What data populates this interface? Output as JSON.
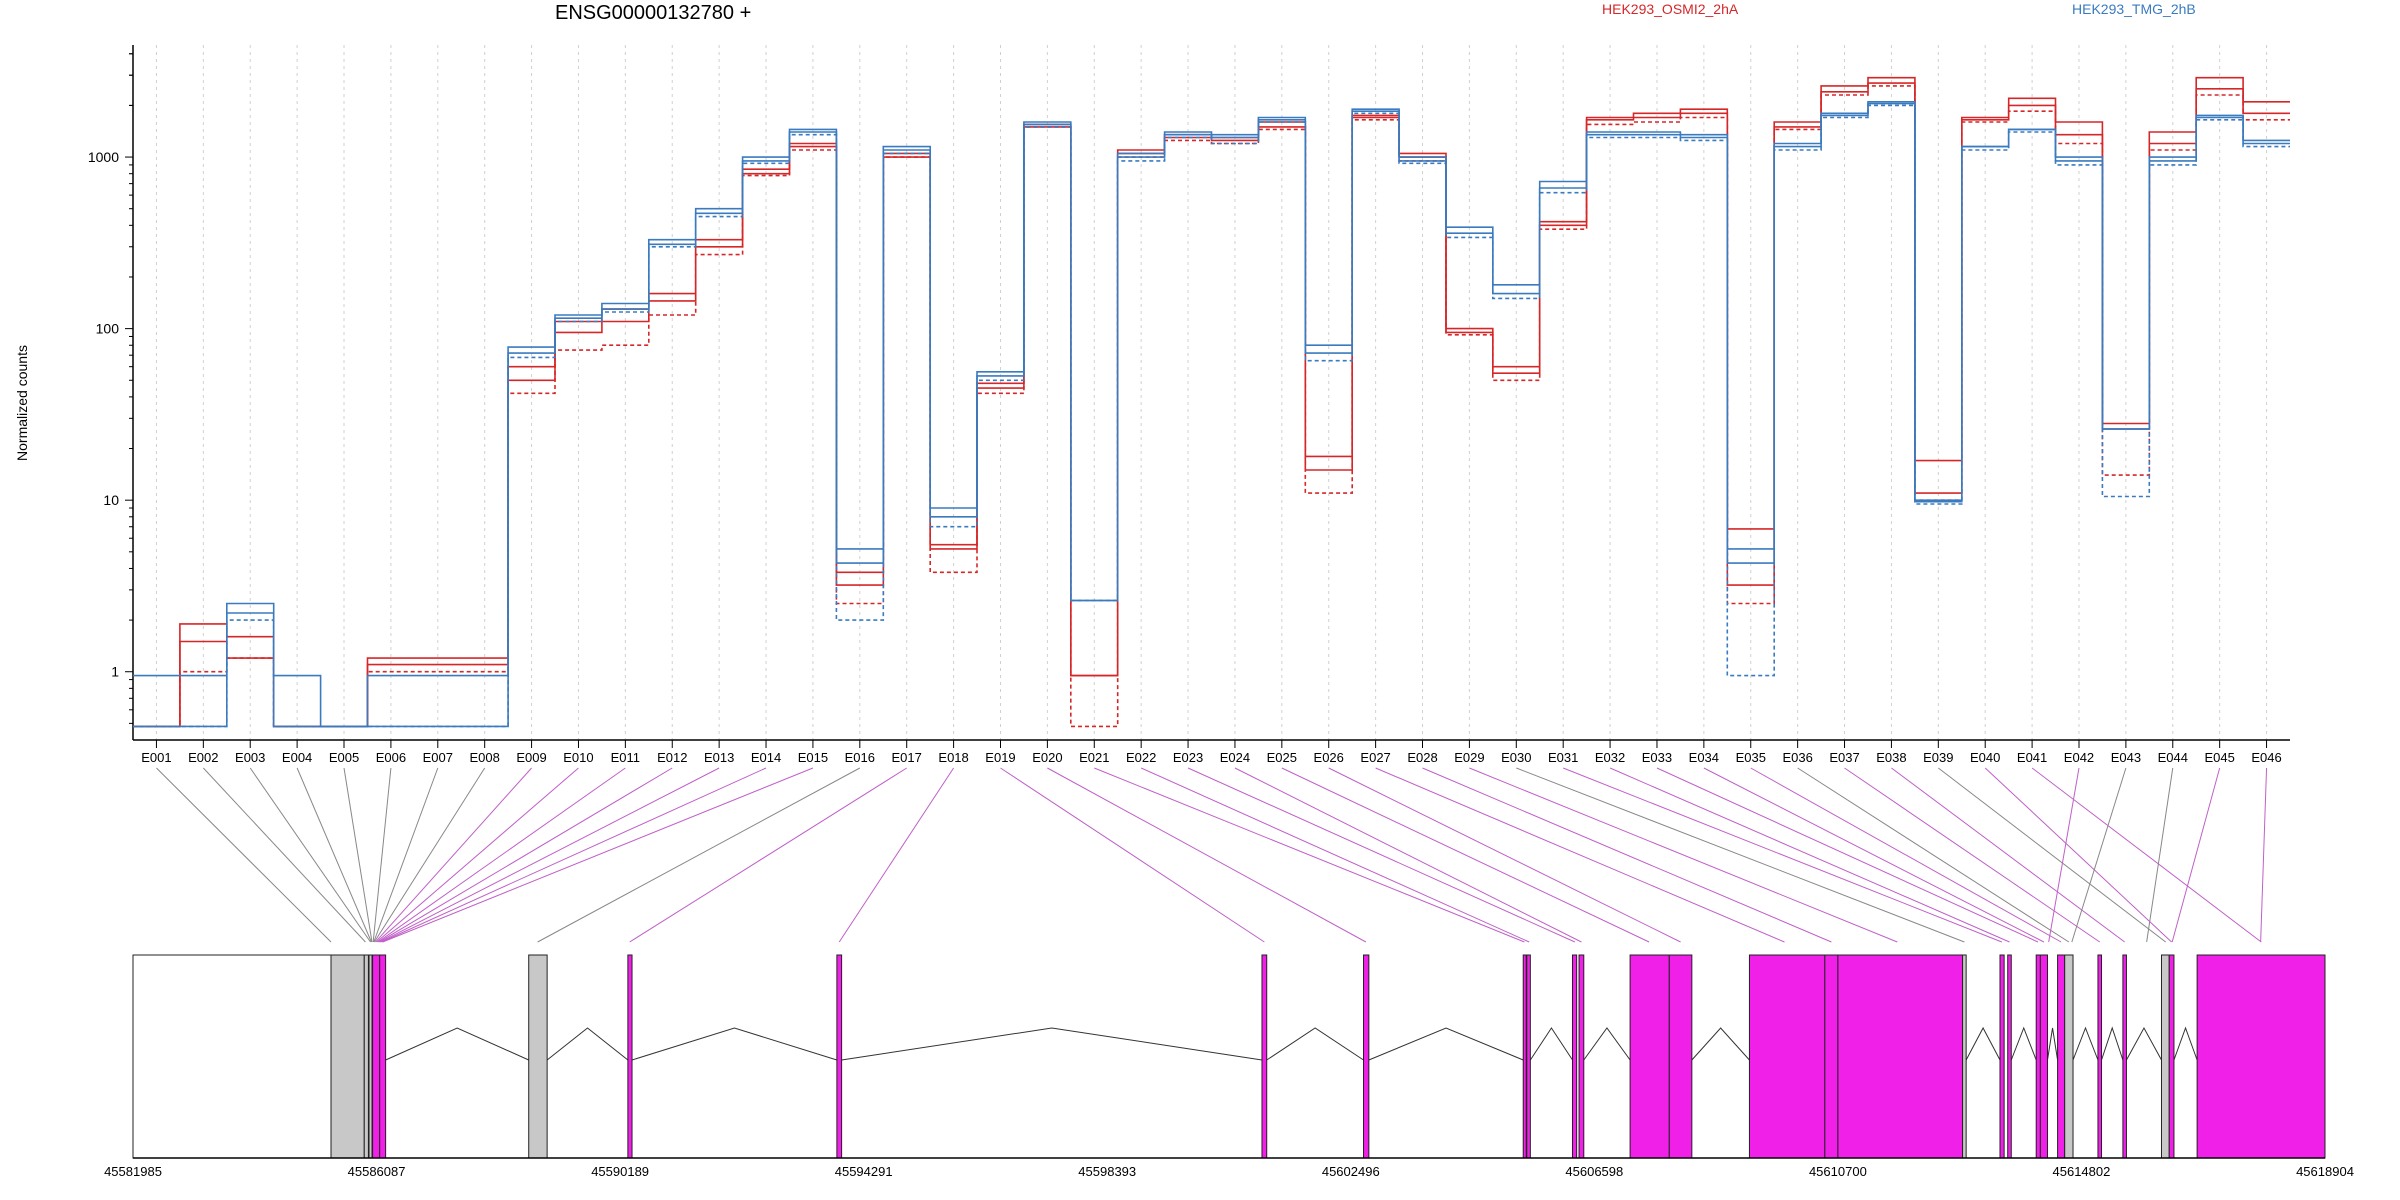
{
  "chart_data": {
    "type": "line",
    "title": "ENSG00000132780 +",
    "ylabel": "Normalized counts",
    "yscale": "log",
    "ylim": [
      0.4,
      4500
    ],
    "y_ticks": [
      1,
      10,
      100,
      1000
    ],
    "y_tick_labels": [
      "1",
      "10",
      "100",
      "1000"
    ],
    "legend_placement": "top",
    "grid": "vertical dashed lines at each exon",
    "categories": [
      "E001",
      "E002",
      "E003",
      "E004",
      "E005",
      "E006",
      "E007",
      "E008",
      "E009",
      "E010",
      "E011",
      "E012",
      "E013",
      "E014",
      "E015",
      "E016",
      "E017",
      "E018",
      "E019",
      "E020",
      "E021",
      "E022",
      "E023",
      "E024",
      "E025",
      "E026",
      "E027",
      "E028",
      "E029",
      "E030",
      "E031",
      "E032",
      "E033",
      "E034",
      "E035",
      "E036",
      "E037",
      "E038",
      "E039",
      "E040",
      "E041",
      "E042",
      "E043",
      "E044",
      "E045",
      "E046"
    ],
    "legend": [
      {
        "label": "HEK293_OSMI2_2hA",
        "color": "#d62728"
      },
      {
        "label": "HEK293_TMG_2hB",
        "color": "#3a7bbf"
      }
    ],
    "series": [
      {
        "group": "HEK293_OSMI2_2hA",
        "color": "#d62728",
        "dash": false,
        "values": [
          0.48,
          1.9,
          1.6,
          0.48,
          0.48,
          1.2,
          1.2,
          1.2,
          60,
          110,
          130,
          160,
          330,
          850,
          1200,
          3.8,
          1000,
          5.2,
          48,
          1550,
          0.95,
          1100,
          1350,
          1300,
          1600,
          18,
          1700,
          1050,
          100,
          60,
          400,
          1700,
          1800,
          1900,
          6.8,
          1600,
          2600,
          2900,
          17,
          1700,
          2200,
          1600,
          28,
          1400,
          2900,
          2100
        ]
      },
      {
        "group": "HEK293_OSMI2_2hA",
        "color": "#d62728",
        "dash": false,
        "values": [
          0.48,
          1.5,
          1.2,
          0.48,
          0.48,
          1.1,
          1.1,
          1.1,
          50,
          95,
          110,
          145,
          300,
          800,
          1150,
          3.2,
          1050,
          5.5,
          45,
          1500,
          0.95,
          1050,
          1300,
          1250,
          1500,
          15,
          1750,
          1000,
          95,
          55,
          420,
          1650,
          1700,
          1800,
          3.2,
          1500,
          2400,
          2700,
          11,
          1650,
          2000,
          1350,
          26,
          1200,
          2500,
          1800
        ]
      },
      {
        "group": "HEK293_OSMI2_2hA",
        "color": "#d62728",
        "dash": true,
        "values": [
          0.48,
          1.0,
          1.2,
          0.48,
          0.48,
          1.0,
          1.0,
          1.0,
          42,
          75,
          80,
          120,
          270,
          780,
          1100,
          2.5,
          1000,
          3.8,
          42,
          1500,
          0.48,
          1000,
          1250,
          1200,
          1450,
          11,
          1650,
          950,
          92,
          50,
          380,
          1550,
          1600,
          1700,
          2.5,
          1450,
          2300,
          2600,
          10,
          1600,
          1850,
          1200,
          14,
          1100,
          2300,
          1650
        ]
      },
      {
        "group": "HEK293_TMG_2hB",
        "color": "#3a7bbf",
        "dash": false,
        "values": [
          0.95,
          0.95,
          2.5,
          0.95,
          0.48,
          0.95,
          0.95,
          0.95,
          78,
          120,
          140,
          330,
          500,
          1000,
          1450,
          5.2,
          1150,
          9.0,
          56,
          1600,
          2.6,
          1050,
          1400,
          1350,
          1700,
          80,
          1900,
          1000,
          390,
          180,
          720,
          1400,
          1400,
          1350,
          5.2,
          1200,
          1800,
          2100,
          10,
          1150,
          1450,
          1000,
          26,
          1000,
          1750,
          1250
        ]
      },
      {
        "group": "HEK293_TMG_2hB",
        "color": "#3a7bbf",
        "dash": false,
        "values": [
          0.48,
          0.48,
          2.2,
          0.48,
          0.48,
          0.48,
          0.48,
          0.48,
          72,
          115,
          130,
          310,
          470,
          950,
          1400,
          4.3,
          1100,
          8.0,
          53,
          1550,
          2.6,
          1000,
          1350,
          1300,
          1650,
          72,
          1850,
          950,
          360,
          160,
          660,
          1350,
          1350,
          1300,
          4.3,
          1150,
          1750,
          2050,
          9.8,
          1150,
          1450,
          950,
          26,
          950,
          1700,
          1200
        ]
      },
      {
        "group": "HEK293_TMG_2hB",
        "color": "#3a7bbf",
        "dash": true,
        "values": [
          0.48,
          0.48,
          2.0,
          0.48,
          0.48,
          0.48,
          0.48,
          0.48,
          68,
          110,
          125,
          300,
          450,
          920,
          1350,
          2.0,
          1050,
          7.0,
          50,
          1500,
          2.6,
          950,
          1300,
          1200,
          1600,
          65,
          1800,
          920,
          340,
          150,
          620,
          1300,
          1300,
          1250,
          0.95,
          1100,
          1700,
          2000,
          9.5,
          1100,
          1400,
          900,
          10.5,
          900,
          1650,
          1150
        ]
      }
    ],
    "gene_model": {
      "coordinate_labels": [
        "45581985",
        "45586087",
        "45590189",
        "45594291",
        "45598393",
        "45602496",
        "45606598",
        "45610700",
        "45614802",
        "45618904"
      ],
      "coord_range": [
        45581985,
        45618904
      ],
      "features": [
        {
          "start": 45581985,
          "end": 45585320,
          "kind": "flank"
        },
        {
          "start": 45585320,
          "end": 45585880,
          "kind": "noncoding"
        },
        {
          "start": 45585880,
          "end": 45585950,
          "kind": "noncoding"
        },
        {
          "start": 45585960,
          "end": 45586010,
          "kind": "noncoding"
        },
        {
          "start": 45586020,
          "end": 45586140,
          "kind": "exon"
        },
        {
          "start": 45586140,
          "end": 45586240,
          "kind": "exon"
        },
        {
          "start": 45588650,
          "end": 45588960,
          "kind": "noncoding"
        },
        {
          "start": 45590320,
          "end": 45590390,
          "kind": "exon"
        },
        {
          "start": 45593840,
          "end": 45593920,
          "kind": "exon"
        },
        {
          "start": 45601000,
          "end": 45601080,
          "kind": "exon"
        },
        {
          "start": 45602710,
          "end": 45602800,
          "kind": "exon"
        },
        {
          "start": 45605400,
          "end": 45605440,
          "kind": "exon"
        },
        {
          "start": 45605460,
          "end": 45605520,
          "kind": "exon"
        },
        {
          "start": 45606230,
          "end": 45606300,
          "kind": "exon"
        },
        {
          "start": 45606340,
          "end": 45606420,
          "kind": "exon"
        },
        {
          "start": 45607200,
          "end": 45607860,
          "kind": "exon"
        },
        {
          "start": 45607860,
          "end": 45608240,
          "kind": "exon"
        },
        {
          "start": 45609210,
          "end": 45610480,
          "kind": "exon"
        },
        {
          "start": 45610480,
          "end": 45610700,
          "kind": "exon"
        },
        {
          "start": 45610700,
          "end": 45612800,
          "kind": "exon"
        },
        {
          "start": 45612800,
          "end": 45612860,
          "kind": "noncoding"
        },
        {
          "start": 45613430,
          "end": 45613500,
          "kind": "exon"
        },
        {
          "start": 45613560,
          "end": 45613620,
          "kind": "exon"
        },
        {
          "start": 45614040,
          "end": 45614110,
          "kind": "exon"
        },
        {
          "start": 45614110,
          "end": 45614230,
          "kind": "exon"
        },
        {
          "start": 45614400,
          "end": 45614520,
          "kind": "exon"
        },
        {
          "start": 45614520,
          "end": 45614660,
          "kind": "noncoding"
        },
        {
          "start": 45615080,
          "end": 45615140,
          "kind": "exon"
        },
        {
          "start": 45615500,
          "end": 45615560,
          "kind": "exon"
        },
        {
          "start": 45616150,
          "end": 45616280,
          "kind": "noncoding"
        },
        {
          "start": 45616280,
          "end": 45616360,
          "kind": "exon"
        },
        {
          "start": 45616750,
          "end": 45618904,
          "kind": "exon"
        }
      ],
      "exon_links": [
        {
          "exon": "E001",
          "to": 45585320,
          "kind": "noncoding"
        },
        {
          "exon": "E002",
          "to": 45585900,
          "kind": "noncoding"
        },
        {
          "exon": "E003",
          "to": 45585985,
          "kind": "noncoding"
        },
        {
          "exon": "E004",
          "to": 45586000,
          "kind": "noncoding"
        },
        {
          "exon": "E005",
          "to": 45586010,
          "kind": "noncoding"
        },
        {
          "exon": "E006",
          "to": 45586030,
          "kind": "noncoding"
        },
        {
          "exon": "E007",
          "to": 45586040,
          "kind": "noncoding"
        },
        {
          "exon": "E008",
          "to": 45586050,
          "kind": "noncoding"
        },
        {
          "exon": "E009",
          "to": 45586070,
          "kind": "exon"
        },
        {
          "exon": "E010",
          "to": 45586090,
          "kind": "exon"
        },
        {
          "exon": "E011",
          "to": 45586110,
          "kind": "exon"
        },
        {
          "exon": "E012",
          "to": 45586130,
          "kind": "exon"
        },
        {
          "exon": "E013",
          "to": 45586150,
          "kind": "exon"
        },
        {
          "exon": "E014",
          "to": 45586170,
          "kind": "exon"
        },
        {
          "exon": "E015",
          "to": 45586190,
          "kind": "exon"
        },
        {
          "exon": "E016",
          "to": 45588800,
          "kind": "noncoding"
        },
        {
          "exon": "E017",
          "to": 45590350,
          "kind": "exon"
        },
        {
          "exon": "E018",
          "to": 45593880,
          "kind": "exon"
        },
        {
          "exon": "E019",
          "to": 45601040,
          "kind": "exon"
        },
        {
          "exon": "E020",
          "to": 45602750,
          "kind": "exon"
        },
        {
          "exon": "E021",
          "to": 45605420,
          "kind": "exon"
        },
        {
          "exon": "E022",
          "to": 45605500,
          "kind": "exon"
        },
        {
          "exon": "E023",
          "to": 45606270,
          "kind": "exon"
        },
        {
          "exon": "E024",
          "to": 45606380,
          "kind": "exon"
        },
        {
          "exon": "E025",
          "to": 45607520,
          "kind": "exon"
        },
        {
          "exon": "E026",
          "to": 45608050,
          "kind": "exon"
        },
        {
          "exon": "E027",
          "to": 45609800,
          "kind": "exon"
        },
        {
          "exon": "E028",
          "to": 45610590,
          "kind": "exon"
        },
        {
          "exon": "E029",
          "to": 45611700,
          "kind": "exon"
        },
        {
          "exon": "E030",
          "to": 45612830,
          "kind": "noncoding"
        },
        {
          "exon": "E031",
          "to": 45613460,
          "kind": "exon"
        },
        {
          "exon": "E032",
          "to": 45613590,
          "kind": "exon"
        },
        {
          "exon": "E033",
          "to": 45614070,
          "kind": "exon"
        },
        {
          "exon": "E034",
          "to": 45614170,
          "kind": "exon"
        },
        {
          "exon": "E035",
          "to": 45614460,
          "kind": "exon"
        },
        {
          "exon": "E036",
          "to": 45614590,
          "kind": "noncoding"
        },
        {
          "exon": "E037",
          "to": 45615110,
          "kind": "exon"
        },
        {
          "exon": "E038",
          "to": 45615530,
          "kind": "exon"
        },
        {
          "exon": "E039",
          "to": 45616220,
          "kind": "noncoding"
        },
        {
          "exon": "E040",
          "to": 45616320,
          "kind": "exon"
        },
        {
          "exon": "E041",
          "to": 45617830,
          "kind": "exon"
        },
        {
          "exon": "E042",
          "to": 45614250,
          "kind": "exon"
        },
        {
          "exon": "E043",
          "to": 45614640,
          "kind": "noncoding"
        },
        {
          "exon": "E044",
          "to": 45615900,
          "kind": "noncoding"
        },
        {
          "exon": "E045",
          "to": 45616330,
          "kind": "exon"
        },
        {
          "exon": "E046",
          "to": 45617820,
          "kind": "exon"
        }
      ]
    }
  }
}
